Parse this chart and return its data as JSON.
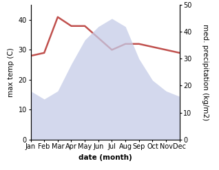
{
  "months": [
    "Jan",
    "Feb",
    "Mar",
    "Apr",
    "May",
    "Jun",
    "Jul",
    "Aug",
    "Sep",
    "Oct",
    "Nov",
    "Dec"
  ],
  "temperature": [
    28,
    29,
    41,
    38,
    38,
    34,
    30,
    32,
    32,
    31,
    30,
    29
  ],
  "precipitation": [
    18,
    15,
    18,
    28,
    37,
    42,
    45,
    42,
    30,
    22,
    18,
    16
  ],
  "temp_color": "#c0504d",
  "precip_color": "#c5cce8",
  "left_ylabel": "max temp (C)",
  "right_ylabel": "med. precipitation (kg/m2)",
  "xlabel": "date (month)",
  "left_ylim": [
    0,
    45
  ],
  "right_ylim": [
    0,
    50
  ],
  "left_yticks": [
    0,
    10,
    20,
    30,
    40
  ],
  "right_yticks": [
    0,
    10,
    20,
    30,
    40,
    50
  ],
  "temp_linewidth": 1.8,
  "precip_alpha": 0.75,
  "title_fontsize": 8,
  "label_fontsize": 7.5,
  "tick_fontsize": 7
}
